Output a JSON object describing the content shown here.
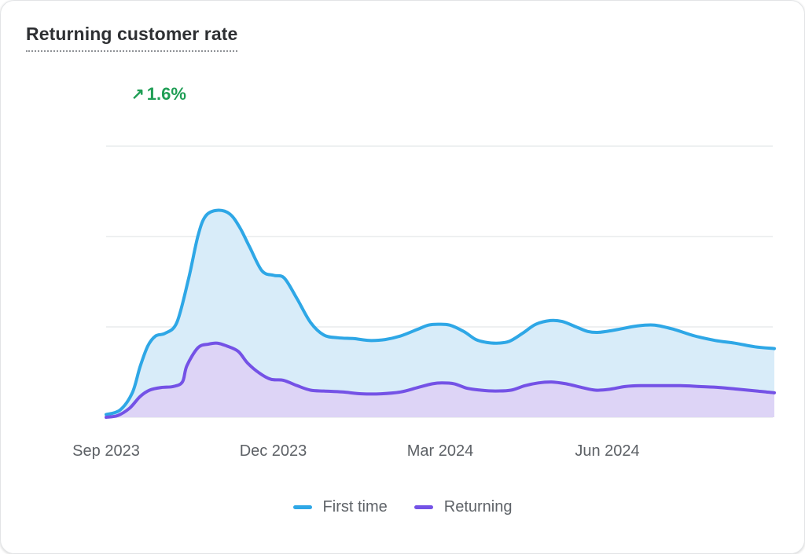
{
  "card": {
    "title": "Returning customer rate",
    "metric": {
      "arrow": "↗",
      "value": "1.6%"
    }
  },
  "colors": {
    "trend_green": "#1f9e55",
    "first_time_blue": "#2ea7e6",
    "first_time_fill": "#d8ecf9",
    "returning_purple": "#7452e6",
    "returning_fill": "#ddd4f6",
    "gridline": "#eef0f1",
    "axis_text": "#5d6166"
  },
  "chart_data": {
    "type": "area",
    "title": "Returning customer rate",
    "subtitle_trend": "+1.6%",
    "x_unit": "months since Sep 2023 (fractional)",
    "x_range": [
      0,
      12
    ],
    "x_tick_labels": [
      {
        "pos": 0,
        "label": "Sep 2023"
      },
      {
        "pos": 3,
        "label": "Dec 2023"
      },
      {
        "pos": 6,
        "label": "Mar 2024"
      },
      {
        "pos": 9,
        "label": "Jun 2024"
      }
    ],
    "y_axis_labeled": false,
    "y_unit": "relative (unlabeled axis; 1.0 = one gridline spacing)",
    "y_range": [
      0,
      3
    ],
    "grid": "horizontal gridlines at 0,1,2,3",
    "legend_position": "bottom center",
    "series": [
      {
        "name": "First time",
        "color": "#2ea7e6",
        "fill": "#d8ecf9",
        "x": [
          0.0,
          0.25,
          0.47,
          0.61,
          0.75,
          0.89,
          1.06,
          1.27,
          1.48,
          1.65,
          1.79,
          2.0,
          2.22,
          2.4,
          2.58,
          2.8,
          3.01,
          3.2,
          3.43,
          3.67,
          3.91,
          4.16,
          4.45,
          4.73,
          5.01,
          5.29,
          5.58,
          5.79,
          5.96,
          6.17,
          6.42,
          6.64,
          6.82,
          7.02,
          7.24,
          7.48,
          7.72,
          7.98,
          8.19,
          8.44,
          8.65,
          8.85,
          9.18,
          9.53,
          9.85,
          10.21,
          10.57,
          10.94,
          11.29,
          11.65,
          12.0
        ],
        "y": [
          0.03,
          0.08,
          0.27,
          0.56,
          0.79,
          0.9,
          0.93,
          1.05,
          1.53,
          2.01,
          2.23,
          2.29,
          2.25,
          2.1,
          1.88,
          1.62,
          1.57,
          1.54,
          1.31,
          1.05,
          0.91,
          0.88,
          0.87,
          0.85,
          0.86,
          0.9,
          0.97,
          1.02,
          1.03,
          1.02,
          0.95,
          0.86,
          0.83,
          0.82,
          0.84,
          0.93,
          1.03,
          1.07,
          1.06,
          1.0,
          0.95,
          0.94,
          0.97,
          1.01,
          1.02,
          0.97,
          0.9,
          0.85,
          0.82,
          0.78,
          0.76
        ]
      },
      {
        "name": "Returning",
        "color": "#7452e6",
        "fill": "#ddd4f6",
        "x": [
          0.0,
          0.21,
          0.42,
          0.61,
          0.78,
          0.99,
          1.2,
          1.37,
          1.45,
          1.65,
          1.84,
          2.0,
          2.16,
          2.37,
          2.54,
          2.75,
          2.96,
          3.18,
          3.43,
          3.67,
          3.91,
          4.24,
          4.59,
          4.94,
          5.29,
          5.6,
          5.86,
          6.03,
          6.25,
          6.49,
          6.73,
          6.99,
          7.27,
          7.52,
          7.76,
          8.0,
          8.26,
          8.54,
          8.79,
          9.04,
          9.32,
          9.6,
          9.95,
          10.31,
          10.66,
          11.01,
          11.36,
          11.69,
          12.0
        ],
        "y": [
          0.0,
          0.02,
          0.1,
          0.23,
          0.3,
          0.33,
          0.34,
          0.39,
          0.57,
          0.77,
          0.81,
          0.82,
          0.79,
          0.73,
          0.6,
          0.49,
          0.42,
          0.41,
          0.35,
          0.3,
          0.29,
          0.28,
          0.26,
          0.26,
          0.28,
          0.33,
          0.37,
          0.38,
          0.37,
          0.32,
          0.3,
          0.29,
          0.3,
          0.35,
          0.38,
          0.39,
          0.37,
          0.33,
          0.3,
          0.31,
          0.34,
          0.35,
          0.35,
          0.35,
          0.34,
          0.33,
          0.31,
          0.29,
          0.27
        ]
      }
    ]
  }
}
